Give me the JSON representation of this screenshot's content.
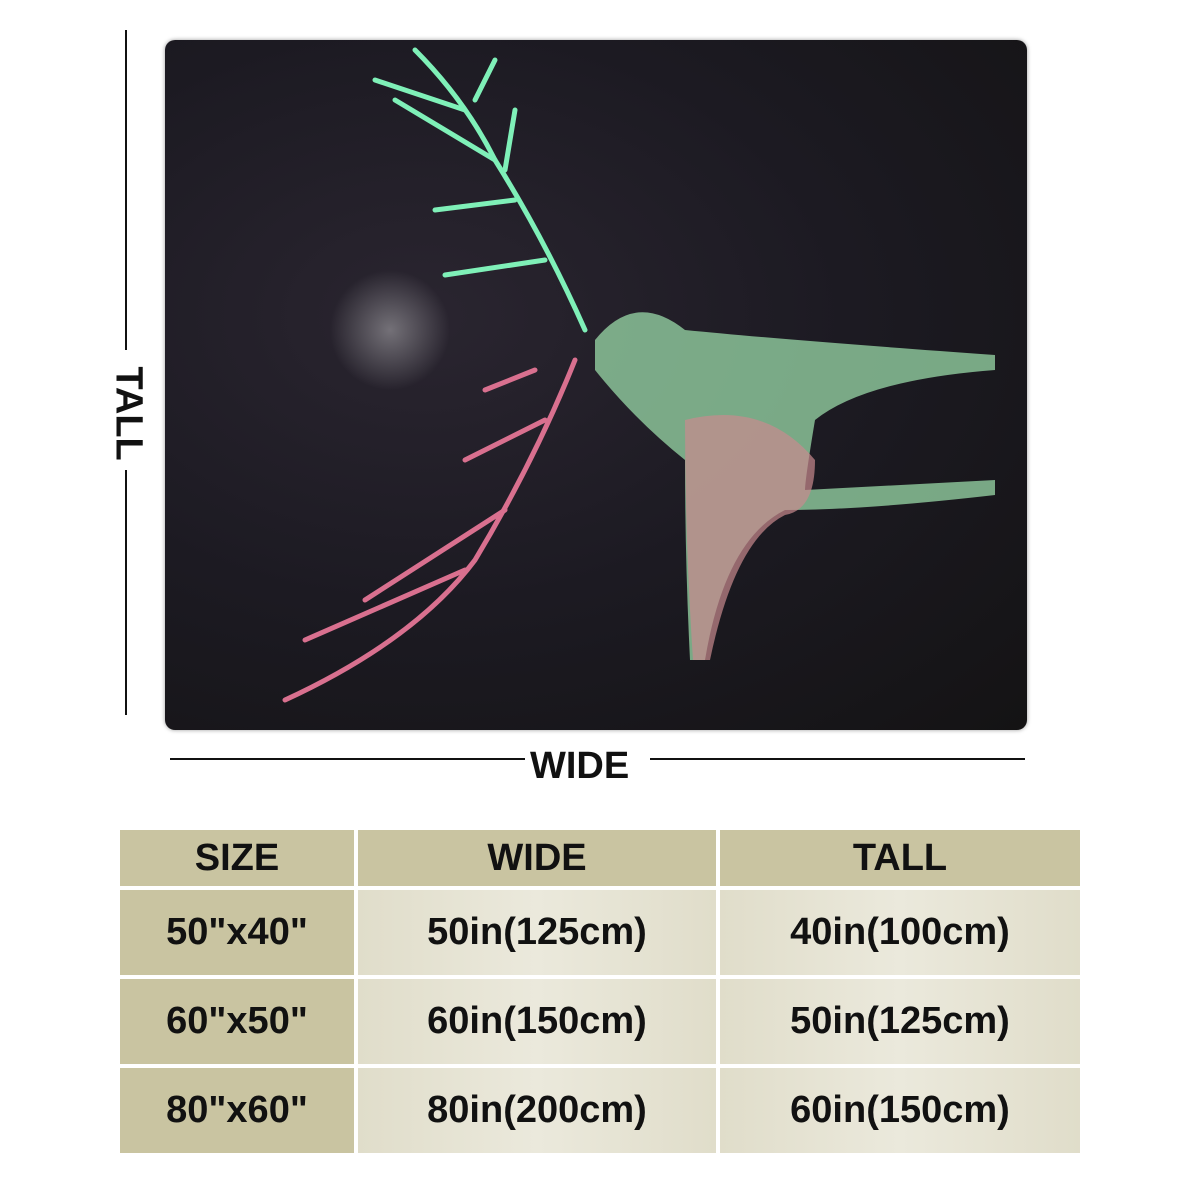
{
  "dimensions": {
    "tall_label": "TALL",
    "wide_label": "WIDE"
  },
  "table": {
    "headers": [
      "SIZE",
      "WIDE",
      "TALL"
    ],
    "rows": [
      [
        "50\"x40\"",
        "50in(125cm)",
        "40in(100cm)"
      ],
      [
        "60\"x50\"",
        "60in(150cm)",
        "50in(125cm)"
      ],
      [
        "80\"x60\"",
        "80in(200cm)",
        "60in(150cm)"
      ]
    ]
  },
  "colors": {
    "header_bg": "#c9c4a1",
    "cell_bg": "#e6e3d3",
    "blanket_bg": "#1c1a22",
    "antler_green": "#7ff0b8",
    "antler_pink": "#d9708f"
  }
}
